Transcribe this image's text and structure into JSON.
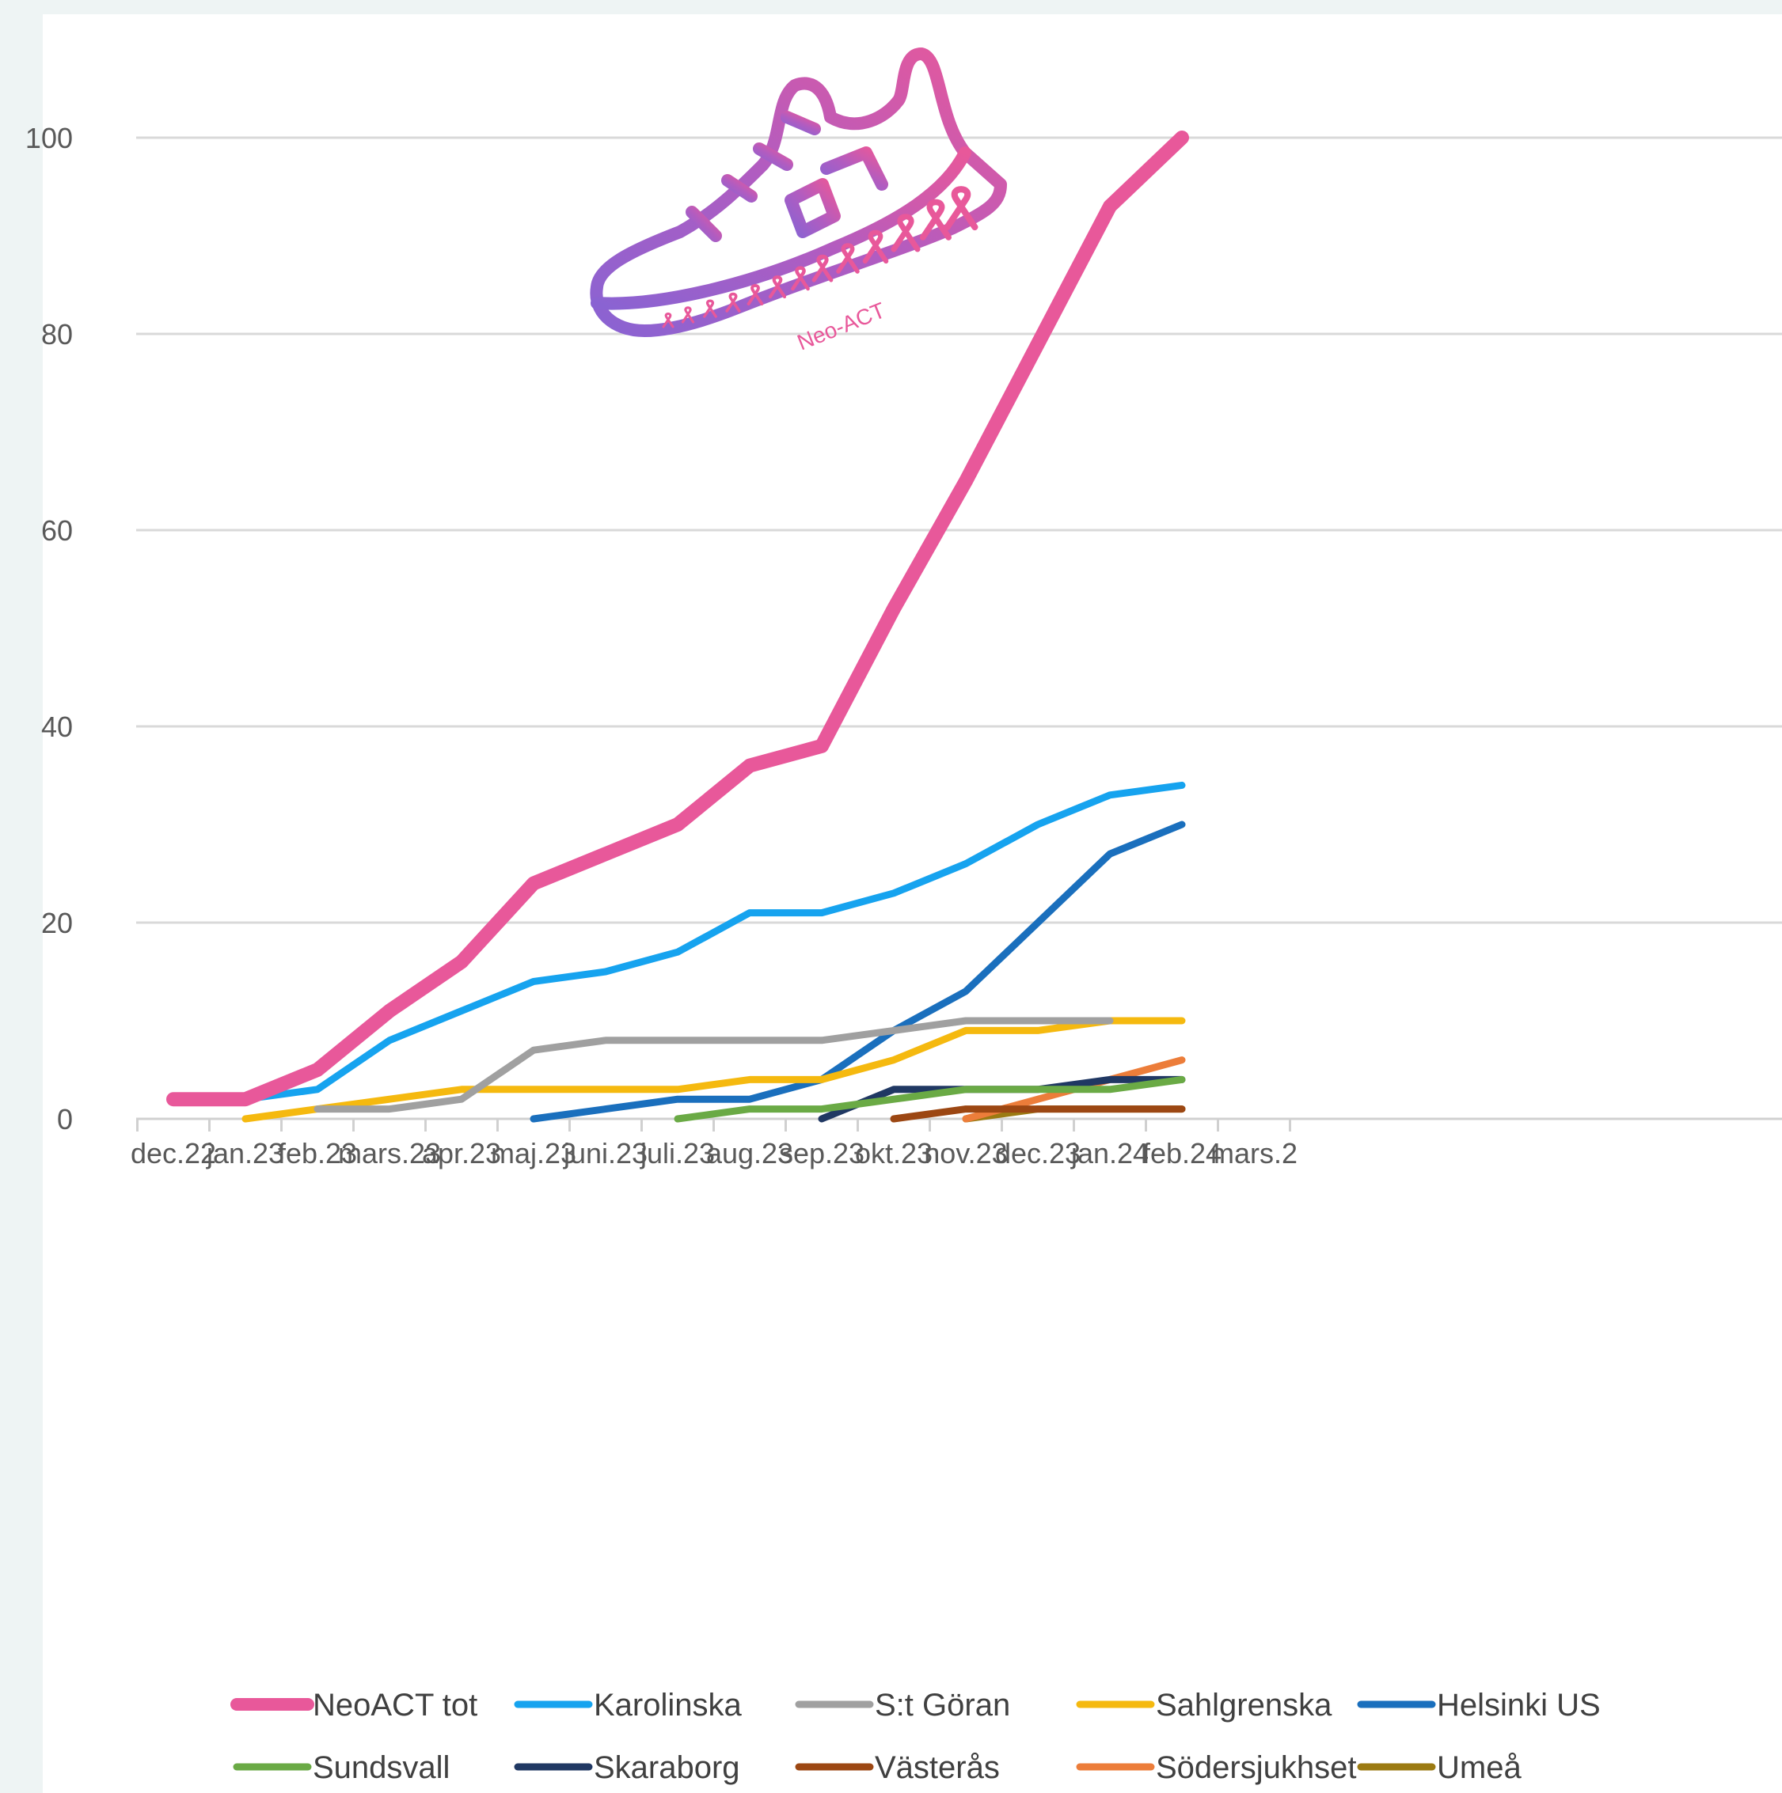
{
  "chart_data": {
    "type": "line",
    "title": "",
    "xlabel": "",
    "ylabel": "",
    "categories": [
      "dec.22",
      "jan.23",
      "feb.23",
      "mars.23",
      "apr.23",
      "maj.23",
      "juni.23",
      "juli.23",
      "aug.23",
      "sep.23",
      "okt.23",
      "nov.23",
      "dec.23",
      "jan.24",
      "feb.24",
      "mars.2"
    ],
    "ylim": [
      0,
      100
    ],
    "yticks": [
      0,
      20,
      40,
      60,
      80,
      100
    ],
    "grid": "horizontal",
    "legend_position": "bottom",
    "logo_text": "Neo-ACT",
    "series": [
      {
        "name": "NeoACT tot",
        "color": "#e8589a",
        "values": [
          2,
          2,
          5,
          11,
          16,
          24,
          27,
          30,
          36,
          38,
          52,
          65,
          79,
          93,
          100,
          null
        ]
      },
      {
        "name": "Karolinska",
        "color": "#16a3ef",
        "values": [
          2,
          2,
          3,
          8,
          11,
          14,
          15,
          17,
          21,
          21,
          23,
          26,
          30,
          33,
          34,
          null
        ]
      },
      {
        "name": "S:t Göran",
        "color": "#a0a0a0",
        "values": [
          null,
          null,
          1,
          1,
          2,
          7,
          8,
          8,
          8,
          8,
          9,
          10,
          10,
          10,
          null,
          null
        ]
      },
      {
        "name": "Sahlgrenska",
        "color": "#f5b90f",
        "values": [
          null,
          0,
          1,
          2,
          3,
          3,
          3,
          3,
          4,
          4,
          6,
          9,
          9,
          10,
          10,
          null
        ]
      },
      {
        "name": "Helsinki US",
        "color": "#1a6fbd",
        "values": [
          null,
          null,
          null,
          null,
          null,
          0,
          1,
          2,
          2,
          4,
          9,
          13,
          20,
          27,
          30,
          null
        ]
      },
      {
        "name": "Sundsvall",
        "color": "#6aaa45",
        "values": [
          null,
          null,
          null,
          null,
          null,
          null,
          null,
          0,
          1,
          1,
          2,
          3,
          3,
          3,
          4,
          null
        ]
      },
      {
        "name": "Skaraborg",
        "color": "#203863",
        "values": [
          null,
          null,
          null,
          null,
          null,
          null,
          null,
          null,
          null,
          0,
          3,
          3,
          3,
          4,
          4,
          null
        ]
      },
      {
        "name": "Västerås",
        "color": "#9c4713",
        "values": [
          null,
          null,
          null,
          null,
          null,
          null,
          null,
          null,
          null,
          null,
          0,
          1,
          1,
          1,
          1,
          null
        ]
      },
      {
        "name": "Södersjukhset",
        "color": "#ec7d3a",
        "values": [
          null,
          null,
          null,
          null,
          null,
          null,
          null,
          null,
          null,
          null,
          null,
          0,
          2,
          4,
          6,
          null
        ]
      },
      {
        "name": "Umeå",
        "color": "#9b7a12",
        "values": [
          null,
          null,
          null,
          null,
          null,
          null,
          null,
          null,
          null,
          null,
          null,
          0,
          1,
          1,
          1,
          null
        ]
      }
    ]
  }
}
